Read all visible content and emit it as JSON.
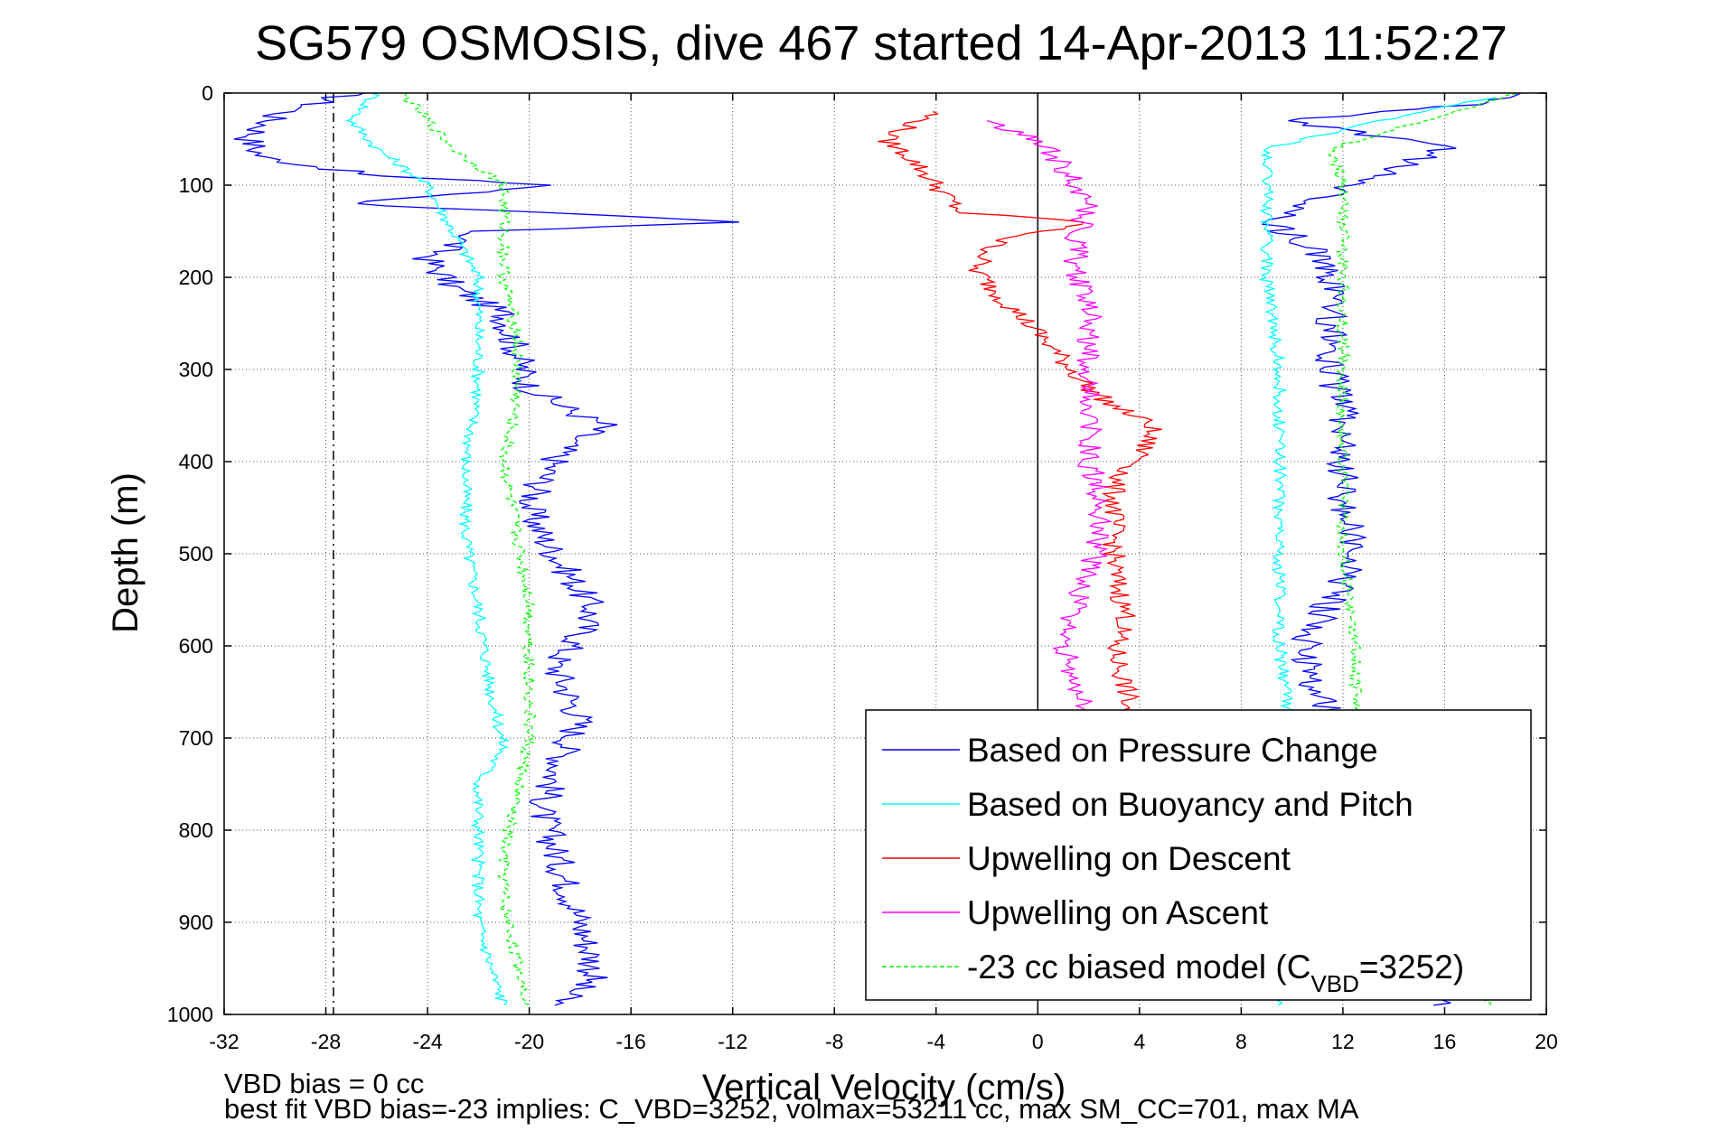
{
  "chart_data": {
    "type": "line",
    "title": "SG579 OSMOSIS, dive 467 started 14-Apr-2013 11:52:27",
    "xlabel": "Vertical Velocity (cm/s)",
    "ylabel": "Depth (m)",
    "xlim": [
      -32,
      20
    ],
    "ylim": [
      0,
      1000
    ],
    "y_reversed": true,
    "xticks": [
      -32,
      -28,
      -24,
      -20,
      -16,
      -12,
      -8,
      -4,
      0,
      4,
      8,
      12,
      16,
      20
    ],
    "yticks": [
      0,
      100,
      200,
      300,
      400,
      500,
      600,
      700,
      800,
      900,
      1000
    ],
    "grid": true,
    "legend_position": "bottom-right",
    "reference_lines": [
      {
        "orientation": "vertical",
        "x": -27.7,
        "style": "dash-dot",
        "color": "#000000"
      },
      {
        "orientation": "vertical",
        "x": 0,
        "style": "solid",
        "color": "#000000"
      }
    ],
    "series": [
      {
        "name": "Based on Pressure Change",
        "color": "#0000ff",
        "style": "solid",
        "descent": [
          [
            -27,
            0
          ],
          [
            -30,
            25
          ],
          [
            -31,
            50
          ],
          [
            -30.5,
            70
          ],
          [
            -26,
            90
          ],
          [
            -19,
            100
          ],
          [
            -27,
            120
          ],
          [
            -12,
            140
          ],
          [
            -22,
            150
          ],
          [
            -24,
            180
          ],
          [
            -23,
            210
          ],
          [
            -21,
            240
          ],
          [
            -20.5,
            280
          ],
          [
            -20,
            320
          ],
          [
            -18,
            350
          ],
          [
            -17,
            360
          ],
          [
            -18.5,
            380
          ],
          [
            -19.5,
            420
          ],
          [
            -20,
            450
          ],
          [
            -19.5,
            480
          ],
          [
            -18.5,
            520
          ],
          [
            -17.5,
            560
          ],
          [
            -18,
            590
          ],
          [
            -19,
            620
          ],
          [
            -18.5,
            650
          ],
          [
            -18,
            680
          ],
          [
            -18.5,
            710
          ],
          [
            -19,
            740
          ],
          [
            -19.5,
            780
          ],
          [
            -19,
            820
          ],
          [
            -18.5,
            860
          ],
          [
            -18,
            900
          ],
          [
            -17.5,
            940
          ],
          [
            -17.5,
            960
          ],
          [
            -19,
            990
          ]
        ],
        "ascent": [
          [
            16,
            990
          ],
          [
            12,
            900
          ],
          [
            11.5,
            800
          ],
          [
            12,
            700
          ],
          [
            11,
            650
          ],
          [
            10.5,
            600
          ],
          [
            11.5,
            550
          ],
          [
            12.5,
            500
          ],
          [
            12,
            450
          ],
          [
            12,
            400
          ],
          [
            12,
            350
          ],
          [
            11.5,
            300
          ],
          [
            11.5,
            250
          ],
          [
            11.5,
            200
          ],
          [
            11,
            170
          ],
          [
            9,
            140
          ],
          [
            16,
            60
          ],
          [
            10,
            30
          ],
          [
            18,
            10
          ],
          [
            19,
            0
          ]
        ]
      },
      {
        "name": "Based on Buoyancy and Pitch",
        "color": "#00ffff",
        "style": "solid",
        "descent": [
          [
            -26,
            0
          ],
          [
            -27,
            30
          ],
          [
            -26,
            60
          ],
          [
            -24,
            100
          ],
          [
            -23,
            150
          ],
          [
            -22,
            200
          ],
          [
            -22,
            260
          ],
          [
            -22,
            320
          ],
          [
            -22.5,
            400
          ],
          [
            -22.5,
            480
          ],
          [
            -22,
            560
          ],
          [
            -21.5,
            650
          ],
          [
            -21,
            710
          ],
          [
            -22,
            750
          ],
          [
            -22,
            800
          ],
          [
            -22,
            850
          ],
          [
            -22,
            900
          ],
          [
            -21.5,
            950
          ],
          [
            -21,
            990
          ]
        ],
        "ascent": [
          [
            9.5,
            990
          ],
          [
            10,
            900
          ],
          [
            10,
            800
          ],
          [
            10,
            700
          ],
          [
            9.5,
            600
          ],
          [
            9.5,
            500
          ],
          [
            9.5,
            400
          ],
          [
            9.5,
            300
          ],
          [
            9,
            200
          ],
          [
            9,
            140
          ],
          [
            9,
            100
          ],
          [
            9,
            60
          ],
          [
            12,
            40
          ],
          [
            15,
            20
          ],
          [
            18,
            5
          ]
        ]
      },
      {
        "name": "Upwelling on Descent",
        "color": "#ff0000",
        "style": "solid",
        "descent": [
          [
            -4,
            20
          ],
          [
            -6,
            50
          ],
          [
            -5,
            70
          ],
          [
            -4,
            100
          ],
          [
            -3,
            130
          ],
          [
            2,
            140
          ],
          [
            -1.5,
            160
          ],
          [
            -2.5,
            190
          ],
          [
            -1.5,
            220
          ],
          [
            0,
            260
          ],
          [
            1,
            290
          ],
          [
            2,
            320
          ],
          [
            3,
            340
          ],
          [
            4.5,
            360
          ],
          [
            4,
            400
          ],
          [
            3,
            420
          ],
          [
            3,
            460
          ],
          [
            3,
            520
          ],
          [
            3.5,
            570
          ],
          [
            3,
            600
          ],
          [
            3.5,
            650
          ],
          [
            3.5,
            680
          ]
        ]
      },
      {
        "name": "Upwelling on Ascent",
        "color": "#ff00ff",
        "style": "solid",
        "ascent": [
          [
            2,
            680
          ],
          [
            1.5,
            650
          ],
          [
            1,
            600
          ],
          [
            1.5,
            560
          ],
          [
            2,
            520
          ],
          [
            2.5,
            480
          ],
          [
            2.5,
            440
          ],
          [
            2,
            400
          ],
          [
            2,
            360
          ],
          [
            2,
            320
          ],
          [
            2,
            280
          ],
          [
            2,
            240
          ],
          [
            1.5,
            200
          ],
          [
            1.5,
            160
          ],
          [
            2,
            120
          ],
          [
            1,
            80
          ],
          [
            0,
            50
          ],
          [
            -2,
            30
          ]
        ]
      },
      {
        "name": "-23 cc biased model (C<sub>VBD</sub>=3252)",
        "color": "#00ff00",
        "style": "dashed",
        "descent": [
          [
            -25,
            0
          ],
          [
            -24,
            30
          ],
          [
            -23,
            60
          ],
          [
            -21,
            100
          ],
          [
            -21,
            150
          ],
          [
            -21,
            200
          ],
          [
            -20.5,
            260
          ],
          [
            -20.5,
            330
          ],
          [
            -21,
            400
          ],
          [
            -20.5,
            480
          ],
          [
            -20,
            550
          ],
          [
            -20,
            620
          ],
          [
            -20,
            700
          ],
          [
            -20.5,
            760
          ],
          [
            -21,
            820
          ],
          [
            -21,
            880
          ],
          [
            -20.5,
            940
          ],
          [
            -20,
            990
          ]
        ],
        "ascent": [
          [
            18,
            990
          ],
          [
            12.5,
            900
          ],
          [
            12.5,
            800
          ],
          [
            12.5,
            700
          ],
          [
            12.5,
            600
          ],
          [
            12,
            500
          ],
          [
            12,
            400
          ],
          [
            12,
            300
          ],
          [
            12,
            200
          ],
          [
            12,
            140
          ],
          [
            12,
            100
          ],
          [
            11.5,
            60
          ],
          [
            14,
            40
          ],
          [
            17,
            15
          ],
          [
            19,
            0
          ]
        ]
      }
    ],
    "annotations": [
      "VBD bias = 0 cc",
      "best fit VBD bias=-23 implies: C_VBD=3252, volmax=53211 cc, max SM_CC=701, max MA"
    ]
  }
}
